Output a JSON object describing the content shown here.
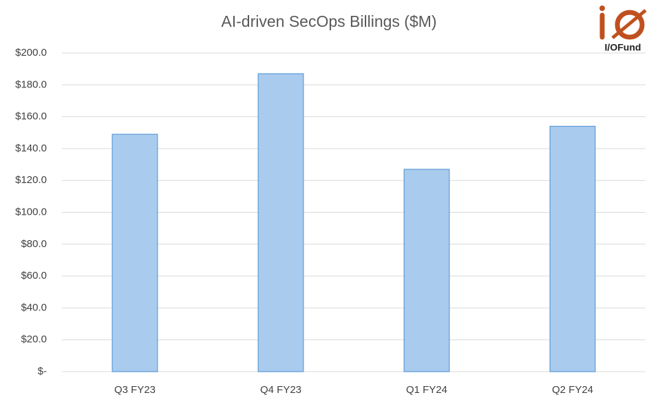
{
  "chart_data": {
    "type": "bar",
    "title": "AI-driven SecOps Billings ($M)",
    "logo": "I/OFund",
    "categories": [
      "Q3 FY23",
      "Q4 FY23",
      "Q1 FY24",
      "Q2 FY24"
    ],
    "values": [
      149,
      187,
      127,
      154
    ],
    "color": "#a9cbed",
    "edge_color": "#5b9bd5",
    "ylim": [
      0,
      200
    ],
    "yticks": [
      {
        "value": 0,
        "label": "$-"
      },
      {
        "value": 20,
        "label": "$20.0"
      },
      {
        "value": 40,
        "label": "$40.0"
      },
      {
        "value": 60,
        "label": "$60.0"
      },
      {
        "value": 80,
        "label": "$80.0"
      },
      {
        "value": 100,
        "label": "$100.0"
      },
      {
        "value": 120,
        "label": "$120.0"
      },
      {
        "value": 140,
        "label": "$140.0"
      },
      {
        "value": 160,
        "label": "$160.0"
      },
      {
        "value": 180,
        "label": "$180.0"
      },
      {
        "value": 200,
        "label": "$200.0"
      }
    ],
    "grid": true
  }
}
